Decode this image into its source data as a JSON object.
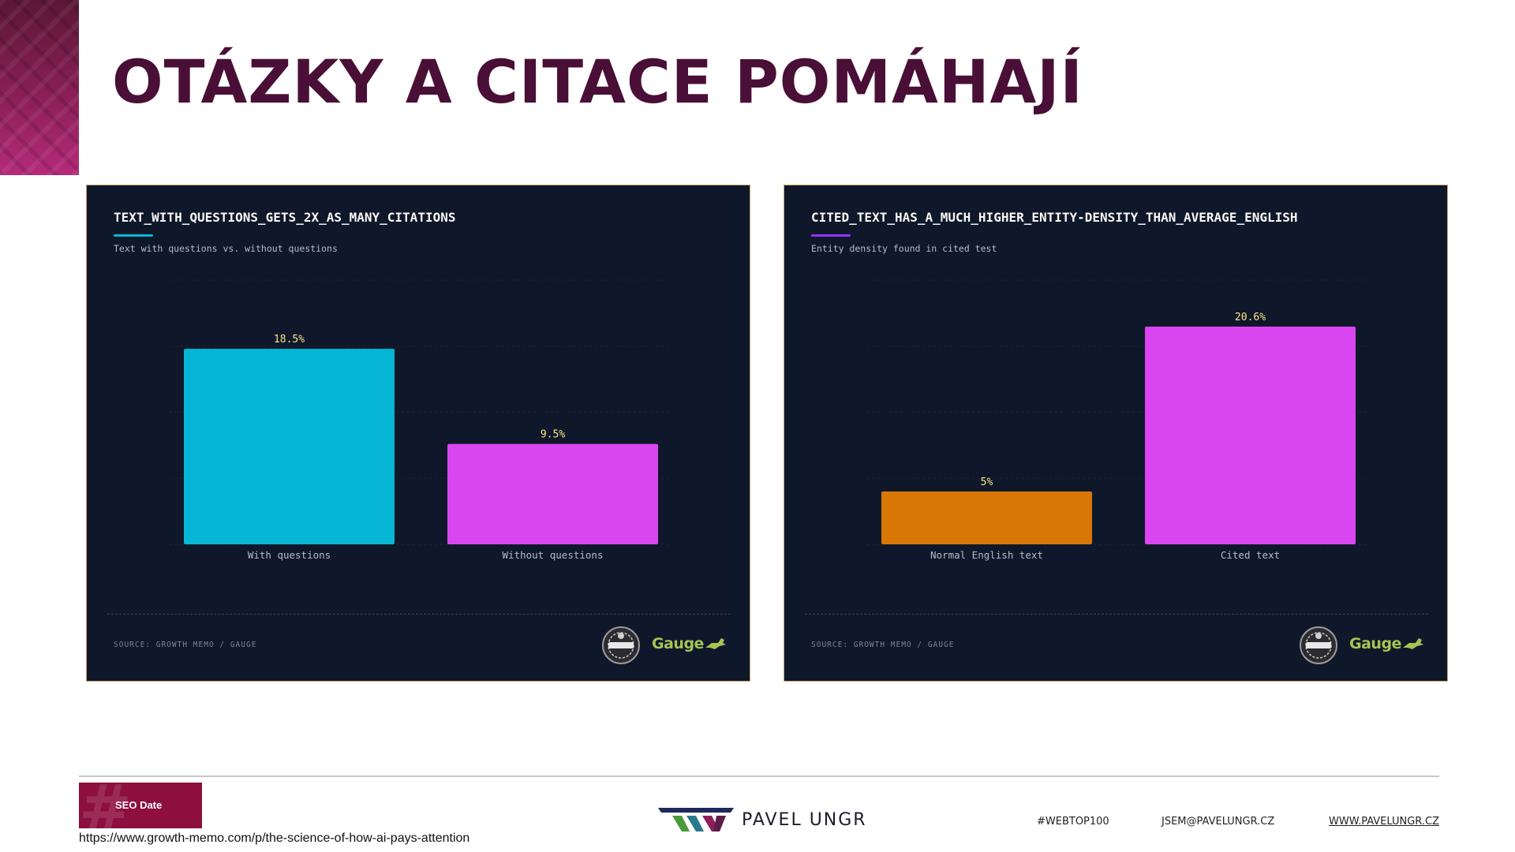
{
  "slide": {
    "title": "OTÁZKY A CITACE POMÁHAJÍ"
  },
  "panels": [
    {
      "title": "TEXT_WITH_QUESTIONS_GETS_2X_AS_MANY_CITATIONS",
      "subtitle": "Text with questions vs. without questions",
      "source": "SOURCE: GROWTH MEMO / GAUGE",
      "brand": "Gauge",
      "accent": "#06b6d4"
    },
    {
      "title": "CITED_TEXT_HAS_A_MUCH_HIGHER_ENTITY-DENSITY_THAN_AVERAGE_ENGLISH",
      "subtitle": "Entity density found in cited test",
      "source": "SOURCE: GROWTH MEMO / GAUGE",
      "brand": "Gauge",
      "accent": "#9b30ff"
    }
  ],
  "chart_data": [
    {
      "type": "bar",
      "title": "TEXT_WITH_QUESTIONS_GETS_2X_AS_MANY_CITATIONS",
      "subtitle": "Text with questions vs. without questions",
      "categories": [
        "With questions",
        "Without questions"
      ],
      "values": [
        18.5,
        9.5
      ],
      "value_labels": [
        "18.5%",
        "9.5%"
      ],
      "colors": [
        "#06b6d4",
        "#d946ef"
      ],
      "ylim": [
        0,
        25
      ],
      "grid": true,
      "legend": "none"
    },
    {
      "type": "bar",
      "title": "CITED_TEXT_HAS_A_MUCH_HIGHER_ENTITY-DENSITY_THAN_AVERAGE_ENGLISH",
      "subtitle": "Entity density found in cited test",
      "categories": [
        "Normal English text",
        "Cited text"
      ],
      "values": [
        5,
        20.6
      ],
      "value_labels": [
        "5%",
        "20.6%"
      ],
      "colors": [
        "#d97706",
        "#d946ef"
      ],
      "ylim": [
        0,
        25
      ],
      "grid": true,
      "legend": "none"
    }
  ],
  "footer": {
    "seo_label": "SEO Date",
    "url": "https://www.growth-memo.com/p/the-science-of-how-ai-pays-attention",
    "brand_name": "PAVEL UNGR",
    "hashtag": "#WEBTOP100",
    "email": "JSEM@PAVELUNGR.CZ",
    "website": "WWW.PAVELUNGR.CZ"
  }
}
